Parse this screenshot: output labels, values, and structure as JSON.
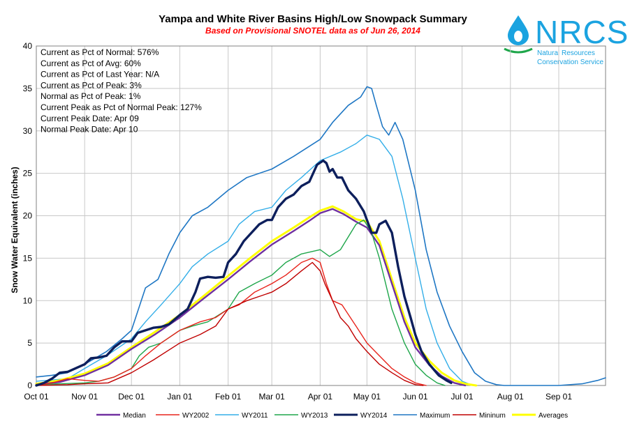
{
  "chart_data": {
    "type": "line",
    "title": "Yampa and White River Basins High/Low Snowpack Summary",
    "subtitle": "Based on Provisional SNOTEL data as of Jun 26, 2014",
    "ylabel": "Snow Water Equivalent (inches)",
    "xlabel": "",
    "ylim": [
      0,
      40
    ],
    "yticks": [
      0,
      5,
      10,
      15,
      20,
      25,
      30,
      35,
      40
    ],
    "xlim": [
      0,
      365
    ],
    "xticks": [
      {
        "label": "Oct 01",
        "day": 0
      },
      {
        "label": "Nov 01",
        "day": 31
      },
      {
        "label": "Dec 01",
        "day": 61
      },
      {
        "label": "Jan 01",
        "day": 92
      },
      {
        "label": "Feb 01",
        "day": 123
      },
      {
        "label": "Mar 01",
        "day": 151
      },
      {
        "label": "Apr 01",
        "day": 182
      },
      {
        "label": "May 01",
        "day": 212
      },
      {
        "label": "Jun 01",
        "day": 243
      },
      {
        "label": "Jul 01",
        "day": 273
      },
      {
        "label": "Aug 01",
        "day": 304
      },
      {
        "label": "Sep 01",
        "day": 335
      }
    ],
    "grid": true,
    "legend_position": "bottom",
    "stats": [
      "Current  as Pct of Normal: 576%",
      "Current  as Pct of Avg: 60%",
      "Current  as Pct of Last Year: N/A",
      "Current  as Pct of Peak: 3%",
      "Normal  as Pct of Peak: 1%",
      "Current  Peak as Pct of Normal  Peak: 127%",
      "Current  Peak Date: Apr 09",
      "Normal  Peak Date: Apr 10"
    ],
    "series": [
      {
        "name": "Maximum",
        "color": "#1f77c4",
        "width": 1.6,
        "points": [
          [
            0,
            1.0
          ],
          [
            10,
            1.2
          ],
          [
            20,
            1.5
          ],
          [
            31,
            2.5
          ],
          [
            45,
            4.0
          ],
          [
            55,
            5.5
          ],
          [
            61,
            6.5
          ],
          [
            70,
            11.5
          ],
          [
            78,
            12.5
          ],
          [
            85,
            15.5
          ],
          [
            92,
            18.0
          ],
          [
            100,
            20.0
          ],
          [
            110,
            21.0
          ],
          [
            123,
            23.0
          ],
          [
            135,
            24.5
          ],
          [
            151,
            25.5
          ],
          [
            165,
            27.0
          ],
          [
            182,
            29.0
          ],
          [
            190,
            31.0
          ],
          [
            200,
            33.0
          ],
          [
            208,
            34.0
          ],
          [
            212,
            35.2
          ],
          [
            215,
            35.0
          ],
          [
            218,
            33.0
          ],
          [
            222,
            30.5
          ],
          [
            226,
            29.5
          ],
          [
            230,
            31.0
          ],
          [
            235,
            29.0
          ],
          [
            243,
            23.0
          ],
          [
            250,
            16.0
          ],
          [
            257,
            11.0
          ],
          [
            265,
            7.0
          ],
          [
            273,
            4.0
          ],
          [
            281,
            1.5
          ],
          [
            288,
            0.5
          ],
          [
            295,
            0.1
          ],
          [
            300,
            0
          ],
          [
            335,
            0
          ],
          [
            350,
            0.2
          ],
          [
            360,
            0.6
          ],
          [
            365,
            0.9
          ]
        ]
      },
      {
        "name": "WY2011",
        "color": "#33aee8",
        "width": 1.4,
        "points": [
          [
            0,
            0.5
          ],
          [
            20,
            0.8
          ],
          [
            31,
            2.0
          ],
          [
            45,
            3.5
          ],
          [
            61,
            5.5
          ],
          [
            70,
            7.5
          ],
          [
            80,
            9.5
          ],
          [
            92,
            12.0
          ],
          [
            100,
            14.0
          ],
          [
            110,
            15.5
          ],
          [
            123,
            17.0
          ],
          [
            130,
            19.0
          ],
          [
            140,
            20.5
          ],
          [
            151,
            21.0
          ],
          [
            160,
            23.0
          ],
          [
            170,
            24.5
          ],
          [
            182,
            26.5
          ],
          [
            195,
            27.5
          ],
          [
            205,
            28.5
          ],
          [
            212,
            29.5
          ],
          [
            220,
            29.0
          ],
          [
            228,
            27.0
          ],
          [
            235,
            22.0
          ],
          [
            243,
            15.0
          ],
          [
            250,
            9.0
          ],
          [
            257,
            5.0
          ],
          [
            265,
            2.0
          ],
          [
            273,
            0.5
          ],
          [
            280,
            0
          ]
        ]
      },
      {
        "name": "Averages",
        "color": "#ffff00",
        "width": 3.0,
        "points": [
          [
            0,
            0.2
          ],
          [
            15,
            0.6
          ],
          [
            31,
            1.4
          ],
          [
            46,
            2.6
          ],
          [
            61,
            4.5
          ],
          [
            76,
            6.3
          ],
          [
            92,
            8.3
          ],
          [
            107,
            10.5
          ],
          [
            123,
            12.9
          ],
          [
            137,
            15.0
          ],
          [
            151,
            17.0
          ],
          [
            165,
            18.6
          ],
          [
            175,
            19.8
          ],
          [
            182,
            20.6
          ],
          [
            190,
            21.1
          ],
          [
            197,
            20.5
          ],
          [
            205,
            19.6
          ],
          [
            212,
            19.3
          ],
          [
            220,
            17.0
          ],
          [
            228,
            12.5
          ],
          [
            236,
            8.0
          ],
          [
            243,
            5.0
          ],
          [
            252,
            2.9
          ],
          [
            260,
            1.5
          ],
          [
            268,
            0.6
          ],
          [
            275,
            0.2
          ],
          [
            282,
            0
          ]
        ]
      },
      {
        "name": "Median",
        "color": "#7030a0",
        "width": 2.4,
        "points": [
          [
            0,
            0.1
          ],
          [
            15,
            0.4
          ],
          [
            31,
            1.2
          ],
          [
            46,
            2.4
          ],
          [
            61,
            4.3
          ],
          [
            76,
            6.0
          ],
          [
            92,
            8.0
          ],
          [
            107,
            10.2
          ],
          [
            123,
            12.5
          ],
          [
            137,
            14.6
          ],
          [
            151,
            16.6
          ],
          [
            165,
            18.2
          ],
          [
            175,
            19.4
          ],
          [
            182,
            20.3
          ],
          [
            190,
            20.8
          ],
          [
            197,
            20.2
          ],
          [
            205,
            19.3
          ],
          [
            212,
            18.6
          ],
          [
            220,
            16.5
          ],
          [
            228,
            12.0
          ],
          [
            236,
            7.5
          ],
          [
            243,
            4.5
          ],
          [
            252,
            2.4
          ],
          [
            260,
            1.1
          ],
          [
            268,
            0.3
          ],
          [
            275,
            0
          ]
        ]
      },
      {
        "name": "WY2013",
        "color": "#1ea64a",
        "width": 1.4,
        "points": [
          [
            0,
            0.1
          ],
          [
            15,
            0.2
          ],
          [
            31,
            0.3
          ],
          [
            40,
            0.5
          ],
          [
            50,
            1.0
          ],
          [
            61,
            2.0
          ],
          [
            66,
            3.5
          ],
          [
            72,
            4.5
          ],
          [
            80,
            5.0
          ],
          [
            92,
            6.5
          ],
          [
            100,
            7.0
          ],
          [
            110,
            7.5
          ],
          [
            123,
            9.0
          ],
          [
            130,
            11.0
          ],
          [
            140,
            12.0
          ],
          [
            151,
            13.0
          ],
          [
            160,
            14.5
          ],
          [
            170,
            15.5
          ],
          [
            182,
            16.0
          ],
          [
            188,
            15.2
          ],
          [
            195,
            16.0
          ],
          [
            205,
            19.0
          ],
          [
            210,
            19.5
          ],
          [
            215,
            18.0
          ],
          [
            220,
            15.0
          ],
          [
            228,
            9.0
          ],
          [
            236,
            5.0
          ],
          [
            243,
            2.5
          ],
          [
            250,
            1.2
          ],
          [
            257,
            0.3
          ],
          [
            262,
            0
          ]
        ]
      },
      {
        "name": "WY2002",
        "color": "#e8231b",
        "width": 1.4,
        "points": [
          [
            0,
            0
          ],
          [
            10,
            0.3
          ],
          [
            20,
            0.8
          ],
          [
            31,
            0.6
          ],
          [
            40,
            0.5
          ],
          [
            50,
            1.0
          ],
          [
            61,
            2.0
          ],
          [
            70,
            3.5
          ],
          [
            80,
            5.0
          ],
          [
            92,
            6.5
          ],
          [
            105,
            7.5
          ],
          [
            115,
            8.0
          ],
          [
            123,
            9.0
          ],
          [
            130,
            9.5
          ],
          [
            140,
            11.0
          ],
          [
            151,
            12.0
          ],
          [
            160,
            13.0
          ],
          [
            170,
            14.5
          ],
          [
            177,
            15.0
          ],
          [
            182,
            14.5
          ],
          [
            186,
            12.0
          ],
          [
            190,
            10.0
          ],
          [
            196,
            9.5
          ],
          [
            205,
            7.0
          ],
          [
            212,
            5.0
          ],
          [
            220,
            3.5
          ],
          [
            228,
            2.0
          ],
          [
            236,
            1.0
          ],
          [
            243,
            0.3
          ],
          [
            250,
            0
          ]
        ]
      },
      {
        "name": "Mininum",
        "color": "#c00000",
        "width": 1.4,
        "points": [
          [
            0,
            0
          ],
          [
            20,
            0.1
          ],
          [
            31,
            0.2
          ],
          [
            46,
            0.3
          ],
          [
            61,
            1.5
          ],
          [
            75,
            3.0
          ],
          [
            92,
            5.0
          ],
          [
            105,
            6.0
          ],
          [
            115,
            7.0
          ],
          [
            123,
            9.0
          ],
          [
            135,
            10.0
          ],
          [
            151,
            11.0
          ],
          [
            160,
            12.0
          ],
          [
            170,
            13.5
          ],
          [
            177,
            14.5
          ],
          [
            182,
            13.5
          ],
          [
            185,
            12.0
          ],
          [
            190,
            10.0
          ],
          [
            195,
            8.0
          ],
          [
            200,
            7.0
          ],
          [
            205,
            5.5
          ],
          [
            212,
            4.0
          ],
          [
            220,
            2.5
          ],
          [
            228,
            1.5
          ],
          [
            236,
            0.6
          ],
          [
            243,
            0.1
          ],
          [
            248,
            0
          ]
        ]
      },
      {
        "name": "WY2014",
        "color": "#0d1f5c",
        "width": 3.4,
        "points": [
          [
            0,
            0
          ],
          [
            5,
            0.3
          ],
          [
            10,
            0.8
          ],
          [
            15,
            1.5
          ],
          [
            20,
            1.6
          ],
          [
            25,
            2.0
          ],
          [
            31,
            2.5
          ],
          [
            35,
            3.2
          ],
          [
            40,
            3.3
          ],
          [
            45,
            3.5
          ],
          [
            50,
            4.5
          ],
          [
            55,
            5.2
          ],
          [
            61,
            5.2
          ],
          [
            65,
            6.2
          ],
          [
            70,
            6.5
          ],
          [
            75,
            6.8
          ],
          [
            80,
            6.9
          ],
          [
            85,
            7.2
          ],
          [
            92,
            8.3
          ],
          [
            97,
            9.0
          ],
          [
            102,
            11.0
          ],
          [
            105,
            12.6
          ],
          [
            110,
            12.8
          ],
          [
            115,
            12.7
          ],
          [
            120,
            12.8
          ],
          [
            123,
            14.5
          ],
          [
            128,
            15.5
          ],
          [
            133,
            17.0
          ],
          [
            138,
            18.0
          ],
          [
            143,
            19.0
          ],
          [
            148,
            19.5
          ],
          [
            151,
            19.5
          ],
          [
            155,
            21.0
          ],
          [
            160,
            22.0
          ],
          [
            165,
            22.5
          ],
          [
            170,
            23.5
          ],
          [
            175,
            24.0
          ],
          [
            180,
            26.0
          ],
          [
            184,
            26.5
          ],
          [
            186,
            26.2
          ],
          [
            188,
            25.2
          ],
          [
            190,
            25.5
          ],
          [
            193,
            24.5
          ],
          [
            196,
            24.5
          ],
          [
            200,
            23.0
          ],
          [
            205,
            22.0
          ],
          [
            210,
            20.5
          ],
          [
            215,
            18.0
          ],
          [
            218,
            18.0
          ],
          [
            220,
            19.0
          ],
          [
            224,
            19.4
          ],
          [
            228,
            18.0
          ],
          [
            232,
            14.0
          ],
          [
            236,
            10.5
          ],
          [
            240,
            8.0
          ],
          [
            243,
            6.0
          ],
          [
            247,
            4.0
          ],
          [
            252,
            2.5
          ],
          [
            258,
            1.2
          ],
          [
            263,
            0.6
          ],
          [
            266,
            0.3
          ]
        ]
      }
    ]
  },
  "logo": {
    "name": "NRCS",
    "line1": "Natural Resources",
    "line2": "Conservation Service"
  }
}
